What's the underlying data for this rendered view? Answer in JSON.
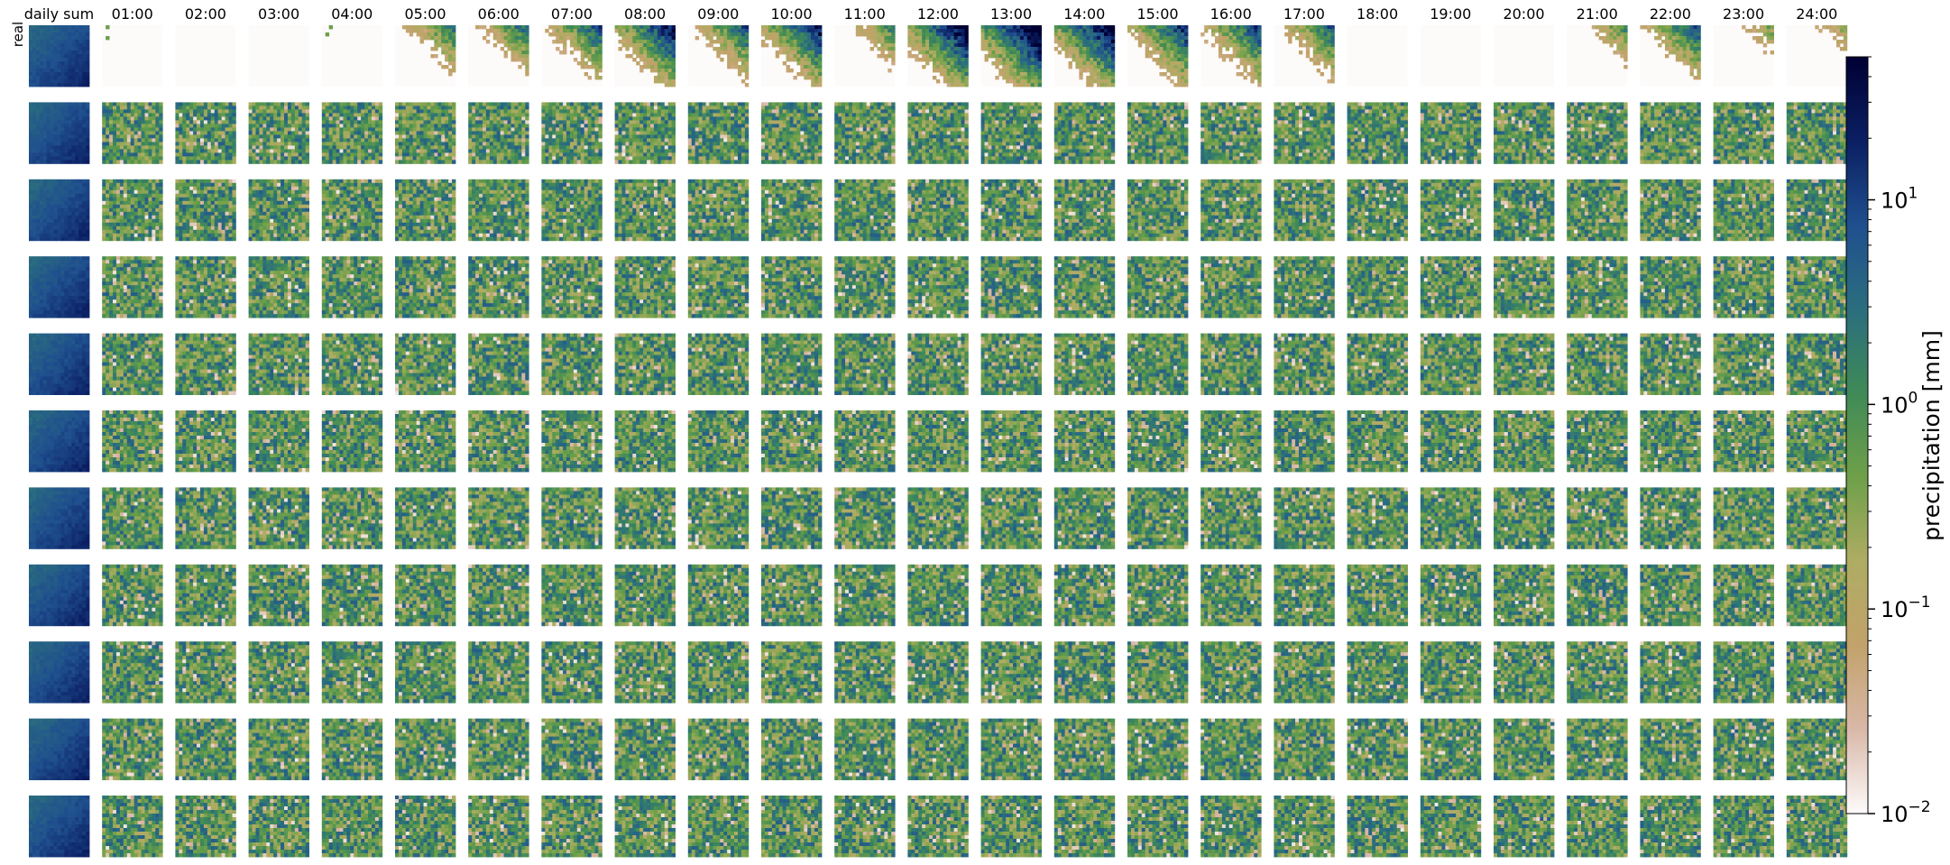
{
  "chart_data": {
    "type": "heatmap",
    "title": "",
    "columns": [
      "daily sum",
      "01:00",
      "02:00",
      "03:00",
      "04:00",
      "05:00",
      "06:00",
      "07:00",
      "08:00",
      "09:00",
      "10:00",
      "11:00",
      "12:00",
      "13:00",
      "14:00",
      "15:00",
      "16:00",
      "17:00",
      "18:00",
      "19:00",
      "20:00",
      "21:00",
      "22:00",
      "23:00",
      "24:00"
    ],
    "row_labels": [
      "real",
      "",
      "",
      "",
      "",
      "",
      "",
      "",
      "",
      "",
      ""
    ],
    "colorbar": {
      "label": "precipitation [mm]",
      "scale": "log",
      "range": [
        0.01,
        50
      ],
      "ticks": [
        {
          "value": 0.01,
          "base": "10",
          "exp": "−2"
        },
        {
          "value": 0.1,
          "base": "10",
          "exp": "−1"
        },
        {
          "value": 1,
          "base": "10",
          "exp": "0"
        },
        {
          "value": 10,
          "base": "10",
          "exp": "1"
        }
      ],
      "colormap": "gist_earth_r",
      "stops": [
        "#fdfbfb",
        "#d9b8a8",
        "#c2a26a",
        "#aeac63",
        "#6fa049",
        "#3f8a57",
        "#2b6e7e",
        "#1f4f8e",
        "#0b1f63",
        "#000033"
      ]
    },
    "real_row_intensity": [
      0.86,
      0.02,
      0.0,
      0.0,
      0.03,
      0.32,
      0.36,
      0.45,
      0.62,
      0.42,
      0.6,
      0.25,
      0.72,
      0.8,
      0.72,
      0.55,
      0.5,
      0.4,
      0.0,
      0.0,
      0.02,
      0.2,
      0.45,
      0.08,
      0.05
    ],
    "generated_row_mean_level": 0.52
  }
}
